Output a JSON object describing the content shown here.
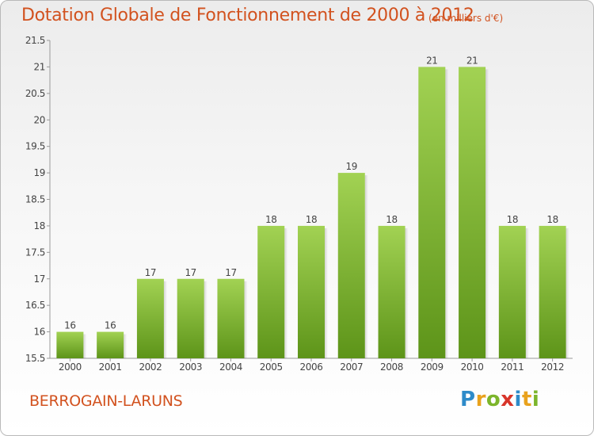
{
  "header": {
    "title": "Dotation Globale de Fonctionnement de 2000 à 2012",
    "units": "(en milliers d'€)"
  },
  "footer": {
    "commune": "BERROGAIN-LARUNS",
    "logo_letters": [
      {
        "char": "P",
        "color": "#2e8bc9"
      },
      {
        "char": "r",
        "color": "#e9a21d"
      },
      {
        "char": "o",
        "color": "#7cb52b"
      },
      {
        "char": "x",
        "color": "#d8352a"
      },
      {
        "char": "i",
        "color": "#2e8bc9"
      },
      {
        "char": "t",
        "color": "#e9a21d"
      },
      {
        "char": "i",
        "color": "#7cb52b"
      }
    ]
  },
  "colors": {
    "bar_top": "#a2d253",
    "bar_bottom": "#5d9419",
    "title": "#d2521f"
  },
  "chart_data": {
    "type": "bar",
    "categories": [
      "2000",
      "2001",
      "2002",
      "2003",
      "2004",
      "2005",
      "2006",
      "2007",
      "2008",
      "2009",
      "2010",
      "2011",
      "2012"
    ],
    "values": [
      16,
      16,
      17,
      17,
      17,
      18,
      18,
      19,
      18,
      21,
      21,
      18,
      18
    ],
    "value_labels": [
      "16",
      "16",
      "17",
      "17",
      "17",
      "18",
      "18",
      "19",
      "18",
      "21",
      "21",
      "18",
      "18"
    ],
    "ylim": [
      15.5,
      21.5
    ],
    "yticks": [
      15.5,
      16,
      16.5,
      17,
      17.5,
      18,
      18.5,
      19,
      19.5,
      20,
      20.5,
      21,
      21.5
    ],
    "ytick_labels": [
      "15.5",
      "16",
      "16.5",
      "17",
      "17.5",
      "18",
      "18.5",
      "19",
      "19.5",
      "20",
      "20.5",
      "21",
      "21.5"
    ],
    "grid": false,
    "legend": "none"
  }
}
